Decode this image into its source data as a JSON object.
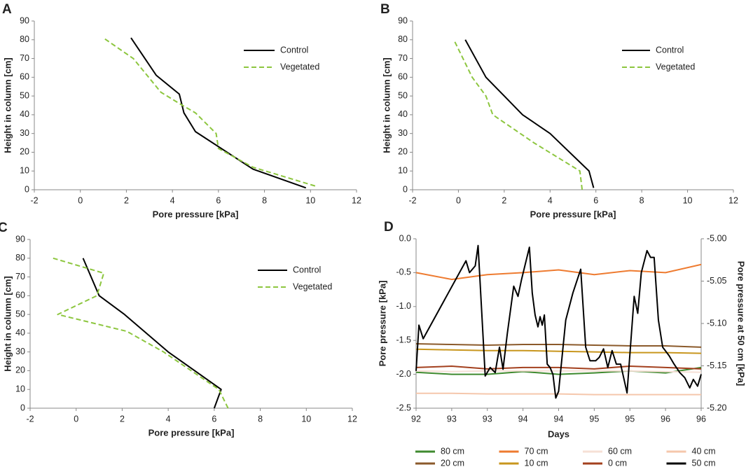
{
  "chart_data": [
    {
      "type": "line",
      "panel": "A",
      "xlabel": "Pore pressure [kPa]",
      "ylabel": "Height in column [cm]",
      "xlim": [
        -2,
        12
      ],
      "xticks": [
        -2,
        0,
        2,
        4,
        6,
        8,
        10,
        12
      ],
      "ylim": [
        0,
        90
      ],
      "yticks": [
        0,
        10,
        20,
        30,
        40,
        50,
        60,
        70,
        80,
        90
      ],
      "grid": false,
      "legend": "upper right",
      "series": [
        {
          "name": "Control",
          "color": "#000000",
          "dashed": false,
          "x": [
            9.8,
            7.5,
            5.0,
            4.5,
            4.3,
            3.3,
            2.2
          ],
          "values": [
            1,
            11,
            31,
            41,
            51,
            61,
            81
          ]
        },
        {
          "name": "Vegetated",
          "color": "#8dc63f",
          "dashed": true,
          "x": [
            10.2,
            7.5,
            6.0,
            5.9,
            5.0,
            4.3,
            3.5,
            2.3,
            1.0
          ],
          "values": [
            2,
            12,
            22,
            30,
            41,
            46,
            52,
            70,
            81
          ]
        }
      ]
    },
    {
      "type": "line",
      "panel": "B",
      "xlabel": "Pore pressure [kPa]",
      "ylabel": "Height in column [cm]",
      "xlim": [
        -2,
        12
      ],
      "xticks": [
        -2,
        0,
        2,
        4,
        6,
        8,
        10,
        12
      ],
      "ylim": [
        0,
        90
      ],
      "yticks": [
        0,
        10,
        20,
        30,
        40,
        50,
        60,
        70,
        80,
        90
      ],
      "grid": false,
      "legend": "upper right",
      "series": [
        {
          "name": "Control",
          "color": "#000000",
          "dashed": false,
          "x": [
            5.9,
            5.7,
            4.0,
            2.8,
            2.0,
            1.2,
            0.3
          ],
          "values": [
            1,
            10,
            30,
            40,
            50,
            60,
            80
          ]
        },
        {
          "name": "Vegetated",
          "color": "#8dc63f",
          "dashed": true,
          "x": [
            5.4,
            5.3,
            3.3,
            1.5,
            1.2,
            0.6,
            -0.2
          ],
          "values": [
            0,
            10,
            25,
            40,
            50,
            60,
            80
          ]
        }
      ]
    },
    {
      "type": "line",
      "panel": "C",
      "xlabel": "Pore pressure [kPa]",
      "ylabel": "Height in column [cm]",
      "xlim": [
        -2,
        12
      ],
      "xticks": [
        -2,
        0,
        2,
        4,
        6,
        8,
        10,
        12
      ],
      "ylim": [
        0,
        90
      ],
      "yticks": [
        0,
        10,
        20,
        30,
        40,
        50,
        60,
        70,
        80,
        90
      ],
      "grid": false,
      "legend": "upper right",
      "series": [
        {
          "name": "Control",
          "color": "#000000",
          "dashed": false,
          "x": [
            6.0,
            6.3,
            4.0,
            2.1,
            1.0,
            0.3
          ],
          "values": [
            0,
            10,
            30,
            50,
            60,
            80
          ]
        },
        {
          "name": "Vegetated",
          "color": "#8dc63f",
          "dashed": true,
          "x": [
            6.6,
            6.2,
            3.8,
            2.2,
            -0.8,
            0.9,
            1.2,
            -1.0
          ],
          "values": [
            0,
            10,
            30,
            41,
            50,
            60,
            72,
            80
          ]
        }
      ]
    },
    {
      "type": "line",
      "panel": "D",
      "xlabel": "Days",
      "ylabel": "Pore pressure [kPa]",
      "y2label": "Pore pressure at 50 cm [kPa]",
      "xlim": [
        92,
        96
      ],
      "xticks": [
        92,
        {
          "value": 92.5,
          "label": "93"
        },
        93,
        {
          "value": 93.5,
          "label": "94"
        },
        94,
        {
          "value": 94.5,
          "label": "95"
        },
        95,
        {
          "value": 95.5,
          "label": "96"
        },
        96
      ],
      "ylim": [
        -2.5,
        0
      ],
      "yticks": [
        -2.5,
        {
          "value": -2,
          "label": "-2.0"
        },
        -1.5,
        {
          "value": -1,
          "label": "-1.0"
        },
        -0.5,
        {
          "value": 0,
          "label": "0.0"
        }
      ],
      "y2lim": [
        -5.2,
        -5
      ],
      "y2ticks": [
        {
          "value": -5.2,
          "label": "-5.20"
        },
        -5.15,
        {
          "value": -5.1,
          "label": "-5.10"
        },
        -5.05,
        {
          "value": -5,
          "label": "-5.00"
        }
      ],
      "grid": false,
      "legend": "bottom",
      "series": [
        {
          "name": "80 cm",
          "color": "#3f8a2f",
          "x": [
            92,
            92.5,
            93,
            93.5,
            94,
            94.5,
            95,
            95.5,
            96
          ],
          "values": [
            -1.97,
            -2.0,
            -2.0,
            -1.96,
            -2.0,
            -1.98,
            -1.95,
            -1.98,
            -1.9
          ]
        },
        {
          "name": "70 cm",
          "color": "#ee7b30",
          "x": [
            92,
            92.5,
            93,
            93.5,
            94,
            94.5,
            95,
            95.5,
            96
          ],
          "values": [
            -0.5,
            -0.6,
            -0.53,
            -0.5,
            -0.46,
            -0.53,
            -0.47,
            -0.5,
            -0.38
          ]
        },
        {
          "name": "60 cm",
          "color": "#f6e0d6",
          "x": [
            92,
            92.5,
            93,
            93.5,
            94,
            94.5,
            95,
            95.5,
            96
          ],
          "values": [
            -1.95,
            -1.96,
            -1.95,
            -1.95,
            -1.95,
            -1.95,
            -1.95,
            -1.96,
            -1.97
          ]
        },
        {
          "name": "40 cm",
          "color": "#f5c7ac",
          "x": [
            92,
            92.5,
            93,
            93.5,
            94,
            94.5,
            95,
            95.5,
            96
          ],
          "values": [
            -2.28,
            -2.28,
            -2.29,
            -2.29,
            -2.29,
            -2.3,
            -2.3,
            -2.3,
            -2.3
          ]
        },
        {
          "name": "20 cm",
          "color": "#8b5a2b",
          "x": [
            92,
            92.5,
            93,
            93.5,
            94,
            94.5,
            95,
            95.5,
            96
          ],
          "values": [
            -1.55,
            -1.56,
            -1.57,
            -1.56,
            -1.56,
            -1.57,
            -1.58,
            -1.58,
            -1.6
          ]
        },
        {
          "name": "10 cm",
          "color": "#c8961e",
          "x": [
            92,
            92.5,
            93,
            93.5,
            94,
            94.5,
            95,
            95.5,
            96
          ],
          "values": [
            -1.63,
            -1.64,
            -1.65,
            -1.65,
            -1.66,
            -1.67,
            -1.68,
            -1.68,
            -1.69
          ]
        },
        {
          "name": "0 cm",
          "color": "#a3401e",
          "x": [
            92,
            92.5,
            93,
            93.5,
            94,
            94.5,
            95,
            95.5,
            96
          ],
          "values": [
            -1.9,
            -1.88,
            -1.92,
            -1.9,
            -1.9,
            -1.92,
            -1.88,
            -1.9,
            -1.92
          ]
        },
        {
          "name": "50 cm",
          "color": "#000000",
          "axis": "y2",
          "x": [
            92.0,
            92.04,
            92.1,
            92.7,
            92.75,
            92.83,
            92.87,
            92.97,
            93.04,
            93.11,
            93.17,
            93.22,
            93.28,
            93.37,
            93.43,
            93.48,
            93.59,
            93.63,
            93.67,
            93.71,
            93.74,
            93.77,
            93.8,
            93.84,
            93.88,
            93.92,
            93.96,
            94.0,
            94.1,
            94.2,
            94.31,
            94.38,
            94.44,
            94.52,
            94.57,
            94.63,
            94.69,
            94.75,
            94.81,
            94.87,
            94.96,
            95.06,
            95.11,
            95.16,
            95.24,
            95.29,
            95.34,
            95.4,
            95.46,
            95.55,
            95.62,
            95.7,
            95.77,
            95.84,
            95.89,
            95.95,
            96.0
          ],
          "values": [
            -5.156,
            -5.102,
            -5.118,
            -5.026,
            -5.04,
            -5.032,
            -5.008,
            -5.162,
            -5.152,
            -5.158,
            -5.128,
            -5.154,
            -5.112,
            -5.056,
            -5.068,
            -5.048,
            -5.01,
            -5.064,
            -5.09,
            -5.104,
            -5.092,
            -5.102,
            -5.09,
            -5.148,
            -5.152,
            -5.16,
            -5.188,
            -5.18,
            -5.096,
            -5.064,
            -5.036,
            -5.128,
            -5.144,
            -5.144,
            -5.14,
            -5.13,
            -5.152,
            -5.132,
            -5.148,
            -5.148,
            -5.182,
            -5.068,
            -5.088,
            -5.04,
            -5.014,
            -5.022,
            -5.022,
            -5.096,
            -5.128,
            -5.138,
            -5.148,
            -5.158,
            -5.164,
            -5.176,
            -5.166,
            -5.174,
            -5.16
          ]
        }
      ]
    }
  ]
}
